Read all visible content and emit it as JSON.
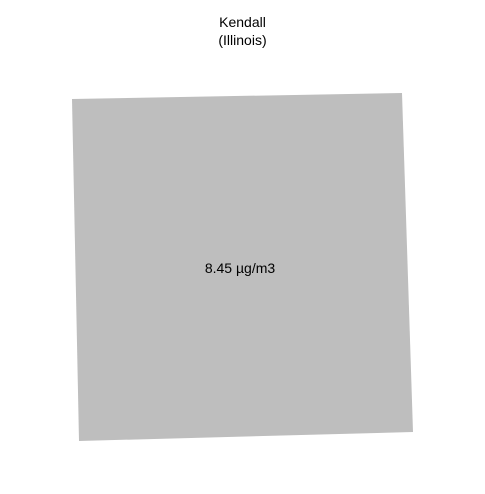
{
  "map": {
    "county_name": "Kendall",
    "state_name": "(Illinois)",
    "region_value_label": "8.45 µg/m3",
    "region_fill_color": "#bebebe"
  }
}
